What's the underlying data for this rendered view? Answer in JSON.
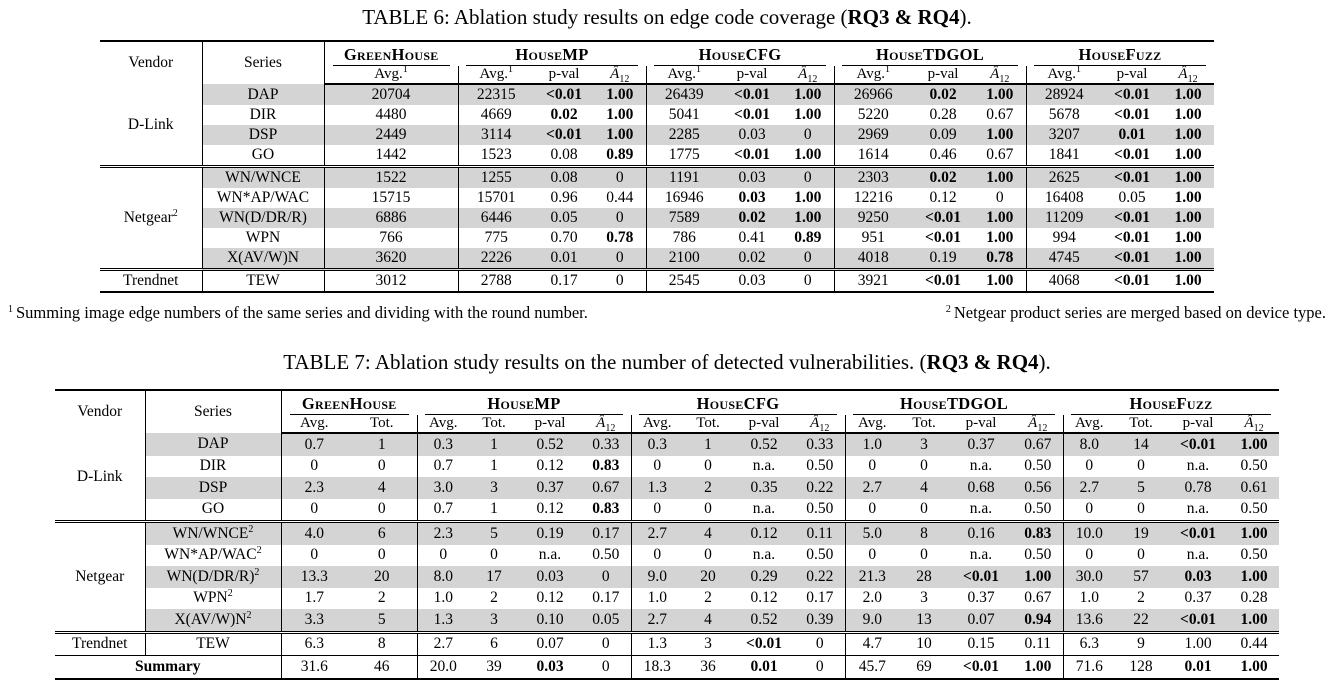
{
  "table6": {
    "title": {
      "prefix": "TABLE 6: Ablation study results on edge code coverage (",
      "bold": "RQ3 & RQ4",
      "suffix": ")."
    },
    "columns": {
      "vendor": "Vendor",
      "series": "Series"
    },
    "groups": [
      {
        "name": "GreenHouse",
        "subs": [
          {
            "t": "Avg.",
            "sup": "1"
          }
        ]
      },
      {
        "name": "HouseMP",
        "subs": [
          {
            "t": "Avg.",
            "sup": "1"
          },
          {
            "t": "p-val"
          },
          {
            "t": "Â",
            "sb": "12",
            "i": 1
          }
        ]
      },
      {
        "name": "HouseCFG",
        "subs": [
          {
            "t": "Avg.",
            "sup": "1"
          },
          {
            "t": "p-val"
          },
          {
            "t": "Â",
            "sb": "12",
            "i": 1
          }
        ]
      },
      {
        "name": "HouseTDGOL",
        "subs": [
          {
            "t": "Avg.",
            "sup": "1"
          },
          {
            "t": "p-val"
          },
          {
            "t": "Â",
            "sb": "12",
            "i": 1
          }
        ]
      },
      {
        "name": "HouseFuzz",
        "subs": [
          {
            "t": "Avg.",
            "sup": "1"
          },
          {
            "t": "p-val"
          },
          {
            "t": "Â",
            "sb": "12",
            "i": 1
          }
        ]
      }
    ],
    "row_groups": [
      {
        "vendor": {
          "t": "D-Link"
        },
        "rows": [
          {
            "series": {
              "t": "DAP"
            },
            "shaded": true,
            "cells": [
              "20704",
              "22315",
              {
                "v": "<0.01",
                "b": 1
              },
              {
                "v": "1.00",
                "b": 1
              },
              "26439",
              {
                "v": "<0.01",
                "b": 1
              },
              {
                "v": "1.00",
                "b": 1
              },
              "26966",
              {
                "v": "0.02",
                "b": 1
              },
              {
                "v": "1.00",
                "b": 1
              },
              "28924",
              {
                "v": "<0.01",
                "b": 1
              },
              {
                "v": "1.00",
                "b": 1
              }
            ]
          },
          {
            "series": {
              "t": "DIR"
            },
            "cells": [
              "4480",
              "4669",
              {
                "v": "0.02",
                "b": 1
              },
              {
                "v": "1.00",
                "b": 1
              },
              "5041",
              {
                "v": "<0.01",
                "b": 1
              },
              {
                "v": "1.00",
                "b": 1
              },
              "5220",
              "0.28",
              "0.67",
              "5678",
              {
                "v": "<0.01",
                "b": 1
              },
              {
                "v": "1.00",
                "b": 1
              }
            ]
          },
          {
            "series": {
              "t": "DSP"
            },
            "shaded": true,
            "cells": [
              "2449",
              "3114",
              {
                "v": "<0.01",
                "b": 1
              },
              {
                "v": "1.00",
                "b": 1
              },
              "2285",
              "0.03",
              "0",
              "2969",
              "0.09",
              {
                "v": "1.00",
                "b": 1
              },
              "3207",
              {
                "v": "0.01",
                "b": 1
              },
              {
                "v": "1.00",
                "b": 1
              }
            ]
          },
          {
            "series": {
              "t": "GO"
            },
            "cells": [
              "1442",
              "1523",
              "0.08",
              {
                "v": "0.89",
                "b": 1
              },
              "1775",
              {
                "v": "<0.01",
                "b": 1
              },
              {
                "v": "1.00",
                "b": 1
              },
              "1614",
              "0.46",
              "0.67",
              "1841",
              {
                "v": "<0.01",
                "b": 1
              },
              {
                "v": "1.00",
                "b": 1
              }
            ]
          }
        ]
      },
      {
        "vendor": {
          "t": "Netgear",
          "sup": "2"
        },
        "rows": [
          {
            "series": {
              "t": "WN/WNCE"
            },
            "shaded": true,
            "cells": [
              "1522",
              "1255",
              "0.08",
              "0",
              "1191",
              "0.03",
              "0",
              "2303",
              {
                "v": "0.02",
                "b": 1
              },
              {
                "v": "1.00",
                "b": 1
              },
              "2625",
              {
                "v": "<0.01",
                "b": 1
              },
              {
                "v": "1.00",
                "b": 1
              }
            ]
          },
          {
            "series": {
              "t": "WN*AP/WAC"
            },
            "cells": [
              "15715",
              "15701",
              "0.96",
              "0.44",
              "16946",
              {
                "v": "0.03",
                "b": 1
              },
              {
                "v": "1.00",
                "b": 1
              },
              "12216",
              "0.12",
              "0",
              "16408",
              "0.05",
              {
                "v": "1.00",
                "b": 1
              }
            ]
          },
          {
            "series": {
              "t": "WN(D/DR/R)"
            },
            "shaded": true,
            "cells": [
              "6886",
              "6446",
              "0.05",
              "0",
              "7589",
              {
                "v": "0.02",
                "b": 1
              },
              {
                "v": "1.00",
                "b": 1
              },
              "9250",
              {
                "v": "<0.01",
                "b": 1
              },
              {
                "v": "1.00",
                "b": 1
              },
              "11209",
              {
                "v": "<0.01",
                "b": 1
              },
              {
                "v": "1.00",
                "b": 1
              }
            ]
          },
          {
            "series": {
              "t": "WPN"
            },
            "cells": [
              "766",
              "775",
              "0.70",
              {
                "v": "0.78",
                "b": 1
              },
              "786",
              "0.41",
              {
                "v": "0.89",
                "b": 1
              },
              "951",
              {
                "v": "<0.01",
                "b": 1
              },
              {
                "v": "1.00",
                "b": 1
              },
              "994",
              {
                "v": "<0.01",
                "b": 1
              },
              {
                "v": "1.00",
                "b": 1
              }
            ]
          },
          {
            "series": {
              "t": "X(AV/W)N"
            },
            "shaded": true,
            "cells": [
              "3620",
              "2226",
              "0.01",
              "0",
              "2100",
              "0.02",
              "0",
              "4018",
              "0.19",
              {
                "v": "0.78",
                "b": 1
              },
              "4745",
              {
                "v": "<0.01",
                "b": 1
              },
              {
                "v": "1.00",
                "b": 1
              }
            ]
          }
        ]
      },
      {
        "vendor": {
          "t": "Trendnet"
        },
        "rows": [
          {
            "series": {
              "t": "TEW"
            },
            "cells": [
              "3012",
              "2788",
              "0.17",
              "0",
              "2545",
              "0.03",
              "0",
              "3921",
              {
                "v": "<0.01",
                "b": 1
              },
              {
                "v": "1.00",
                "b": 1
              },
              "4068",
              {
                "v": "<0.01",
                "b": 1
              },
              {
                "v": "1.00",
                "b": 1
              }
            ]
          }
        ]
      }
    ]
  },
  "footnotes": [
    {
      "sup": "1",
      "text": "Summing image edge numbers of the same series and dividing with the round number."
    },
    {
      "sup": "2",
      "text": "Netgear product series are merged based on device type."
    }
  ],
  "table7": {
    "title": {
      "prefix": "TABLE 7: Ablation study results on the number of detected vulnerabilities. (",
      "bold": "RQ3 & RQ4",
      "suffix": ")."
    },
    "columns": {
      "vendor": "Vendor",
      "series": "Series"
    },
    "groups": [
      {
        "name": "GreenHouse",
        "subs": [
          {
            "t": "Avg."
          },
          {
            "t": "Tot."
          }
        ]
      },
      {
        "name": "HouseMP",
        "subs": [
          {
            "t": "Avg."
          },
          {
            "t": "Tot."
          },
          {
            "t": "p-val"
          },
          {
            "t": "Â",
            "sb": "12",
            "i": 1
          }
        ]
      },
      {
        "name": "HouseCFG",
        "subs": [
          {
            "t": "Avg."
          },
          {
            "t": "Tot."
          },
          {
            "t": "p-val"
          },
          {
            "t": "Â",
            "sb": "12",
            "i": 1
          }
        ]
      },
      {
        "name": "HouseTDGOL",
        "subs": [
          {
            "t": "Avg."
          },
          {
            "t": "Tot."
          },
          {
            "t": "p-val"
          },
          {
            "t": "Â",
            "sb": "12",
            "i": 1
          }
        ]
      },
      {
        "name": "HouseFuzz",
        "subs": [
          {
            "t": "Avg."
          },
          {
            "t": "Tot."
          },
          {
            "t": "p-val"
          },
          {
            "t": "Â",
            "sb": "12",
            "i": 1
          }
        ]
      }
    ],
    "row_groups": [
      {
        "vendor": {
          "t": "D-Link"
        },
        "rows": [
          {
            "series": {
              "t": "DAP"
            },
            "shaded": true,
            "cells": [
              "0.7",
              "1",
              "0.3",
              "1",
              "0.52",
              "0.33",
              "0.3",
              "1",
              "0.52",
              "0.33",
              "1.0",
              "3",
              "0.37",
              "0.67",
              "8.0",
              "14",
              {
                "v": "<0.01",
                "b": 1
              },
              {
                "v": "1.00",
                "b": 1
              }
            ]
          },
          {
            "series": {
              "t": "DIR"
            },
            "cells": [
              "0",
              "0",
              "0.7",
              "1",
              "0.12",
              {
                "v": "0.83",
                "b": 1
              },
              "0",
              "0",
              "n.a.",
              "0.50",
              "0",
              "0",
              "n.a.",
              "0.50",
              "0",
              "0",
              "n.a.",
              "0.50"
            ]
          },
          {
            "series": {
              "t": "DSP"
            },
            "shaded": true,
            "cells": [
              "2.3",
              "4",
              "3.0",
              "3",
              "0.37",
              "0.67",
              "1.3",
              "2",
              "0.35",
              "0.22",
              "2.7",
              "4",
              "0.68",
              "0.56",
              "2.7",
              "5",
              "0.78",
              "0.61"
            ]
          },
          {
            "series": {
              "t": "GO"
            },
            "cells": [
              "0",
              "0",
              "0.7",
              "1",
              "0.12",
              {
                "v": "0.83",
                "b": 1
              },
              "0",
              "0",
              "n.a.",
              "0.50",
              "0",
              "0",
              "n.a.",
              "0.50",
              "0",
              "0",
              "n.a.",
              "0.50"
            ]
          }
        ]
      },
      {
        "vendor": {
          "t": "Netgear"
        },
        "rows": [
          {
            "series": {
              "t": "WN/WNCE",
              "sup": "2"
            },
            "shaded": true,
            "cells": [
              "4.0",
              "6",
              "2.3",
              "5",
              "0.19",
              "0.17",
              "2.7",
              "4",
              "0.12",
              "0.11",
              "5.0",
              "8",
              "0.16",
              {
                "v": "0.83",
                "b": 1
              },
              "10.0",
              "19",
              {
                "v": "<0.01",
                "b": 1
              },
              {
                "v": "1.00",
                "b": 1
              }
            ]
          },
          {
            "series": {
              "t": "WN*AP/WAC",
              "sup": "2"
            },
            "cells": [
              "0",
              "0",
              "0",
              "0",
              "n.a.",
              "0.50",
              "0",
              "0",
              "n.a.",
              "0.50",
              "0",
              "0",
              "n.a.",
              "0.50",
              "0",
              "0",
              "n.a.",
              "0.50"
            ]
          },
          {
            "series": {
              "t": "WN(D/DR/R)",
              "sup": "2"
            },
            "shaded": true,
            "cells": [
              "13.3",
              "20",
              "8.0",
              "17",
              "0.03",
              "0",
              "9.0",
              "20",
              "0.29",
              "0.22",
              "21.3",
              "28",
              {
                "v": "<0.01",
                "b": 1
              },
              {
                "v": "1.00",
                "b": 1
              },
              "30.0",
              "57",
              {
                "v": "0.03",
                "b": 1
              },
              {
                "v": "1.00",
                "b": 1
              }
            ]
          },
          {
            "series": {
              "t": "WPN",
              "sup": "2"
            },
            "cells": [
              "1.7",
              "2",
              "1.0",
              "2",
              "0.12",
              "0.17",
              "1.0",
              "2",
              "0.12",
              "0.17",
              "2.0",
              "3",
              "0.37",
              "0.67",
              "1.0",
              "2",
              "0.37",
              "0.28"
            ]
          },
          {
            "series": {
              "t": "X(AV/W)N",
              "sup": "2"
            },
            "shaded": true,
            "cells": [
              "3.3",
              "5",
              "1.3",
              "3",
              "0.10",
              "0.05",
              "2.7",
              "4",
              "0.52",
              "0.39",
              "9.0",
              "13",
              "0.07",
              {
                "v": "0.94",
                "b": 1
              },
              "13.6",
              "22",
              {
                "v": "<0.01",
                "b": 1
              },
              {
                "v": "1.00",
                "b": 1
              }
            ]
          }
        ]
      },
      {
        "vendor": {
          "t": "Trendnet"
        },
        "rows": [
          {
            "series": {
              "t": "TEW"
            },
            "cells": [
              "6.3",
              "8",
              "2.7",
              "6",
              "0.07",
              "0",
              "1.3",
              "3",
              {
                "v": "<0.01",
                "b": 1
              },
              "0",
              "4.7",
              "10",
              "0.15",
              "0.11",
              "6.3",
              "9",
              "1.00",
              "0.44"
            ]
          }
        ]
      },
      {
        "summary": "Summary",
        "sep": "single",
        "rows": [
          {
            "cells": [
              "31.6",
              "46",
              "20.0",
              "39",
              {
                "v": "0.03",
                "b": 1
              },
              "0",
              "18.3",
              "36",
              {
                "v": "0.01",
                "b": 1
              },
              "0",
              "45.7",
              "69",
              {
                "v": "<0.01",
                "b": 1
              },
              {
                "v": "1.00",
                "b": 1
              },
              "71.6",
              "128",
              {
                "v": "0.01",
                "b": 1
              },
              {
                "v": "1.00",
                "b": 1
              }
            ]
          }
        ]
      }
    ]
  }
}
